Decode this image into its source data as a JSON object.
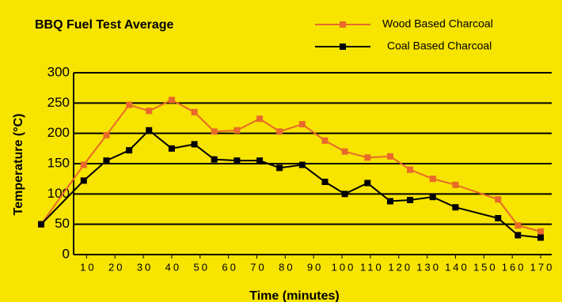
{
  "chart_data": {
    "type": "line",
    "title": "BBQ Fuel Test Average",
    "x_label": "Time (minutes)",
    "y_label": "Temperature (°C)",
    "x": [
      -6,
      9,
      17,
      25,
      32,
      40,
      48,
      55,
      63,
      71,
      78,
      86,
      94,
      101,
      109,
      117,
      124,
      132,
      140,
      155,
      162,
      170
    ],
    "series": [
      {
        "name": "Wood Based Charcoal",
        "color": "#e8692a",
        "values": [
          50,
          148,
          197,
          247,
          237,
          255,
          235,
          203,
          205,
          224,
          203,
          215,
          188,
          170,
          160,
          162,
          140,
          125,
          115,
          91,
          48,
          38
        ]
      },
      {
        "name": "Coal Based Charcoal",
        "color": "#000000",
        "values": [
          50,
          122,
          155,
          172,
          205,
          175,
          182,
          157,
          155,
          155,
          143,
          148,
          120,
          100,
          118,
          88,
          90,
          95,
          78,
          60,
          32,
          28
        ]
      }
    ],
    "xlim": [
      -6,
      170
    ],
    "xticks": [
      10,
      20,
      30,
      40,
      50,
      60,
      70,
      80,
      90,
      100,
      110,
      120,
      130,
      140,
      150,
      160,
      170
    ],
    "ylim": [
      0,
      300
    ],
    "yticks": [
      0,
      50,
      100,
      150,
      200,
      250,
      300
    ],
    "grid": true
  }
}
